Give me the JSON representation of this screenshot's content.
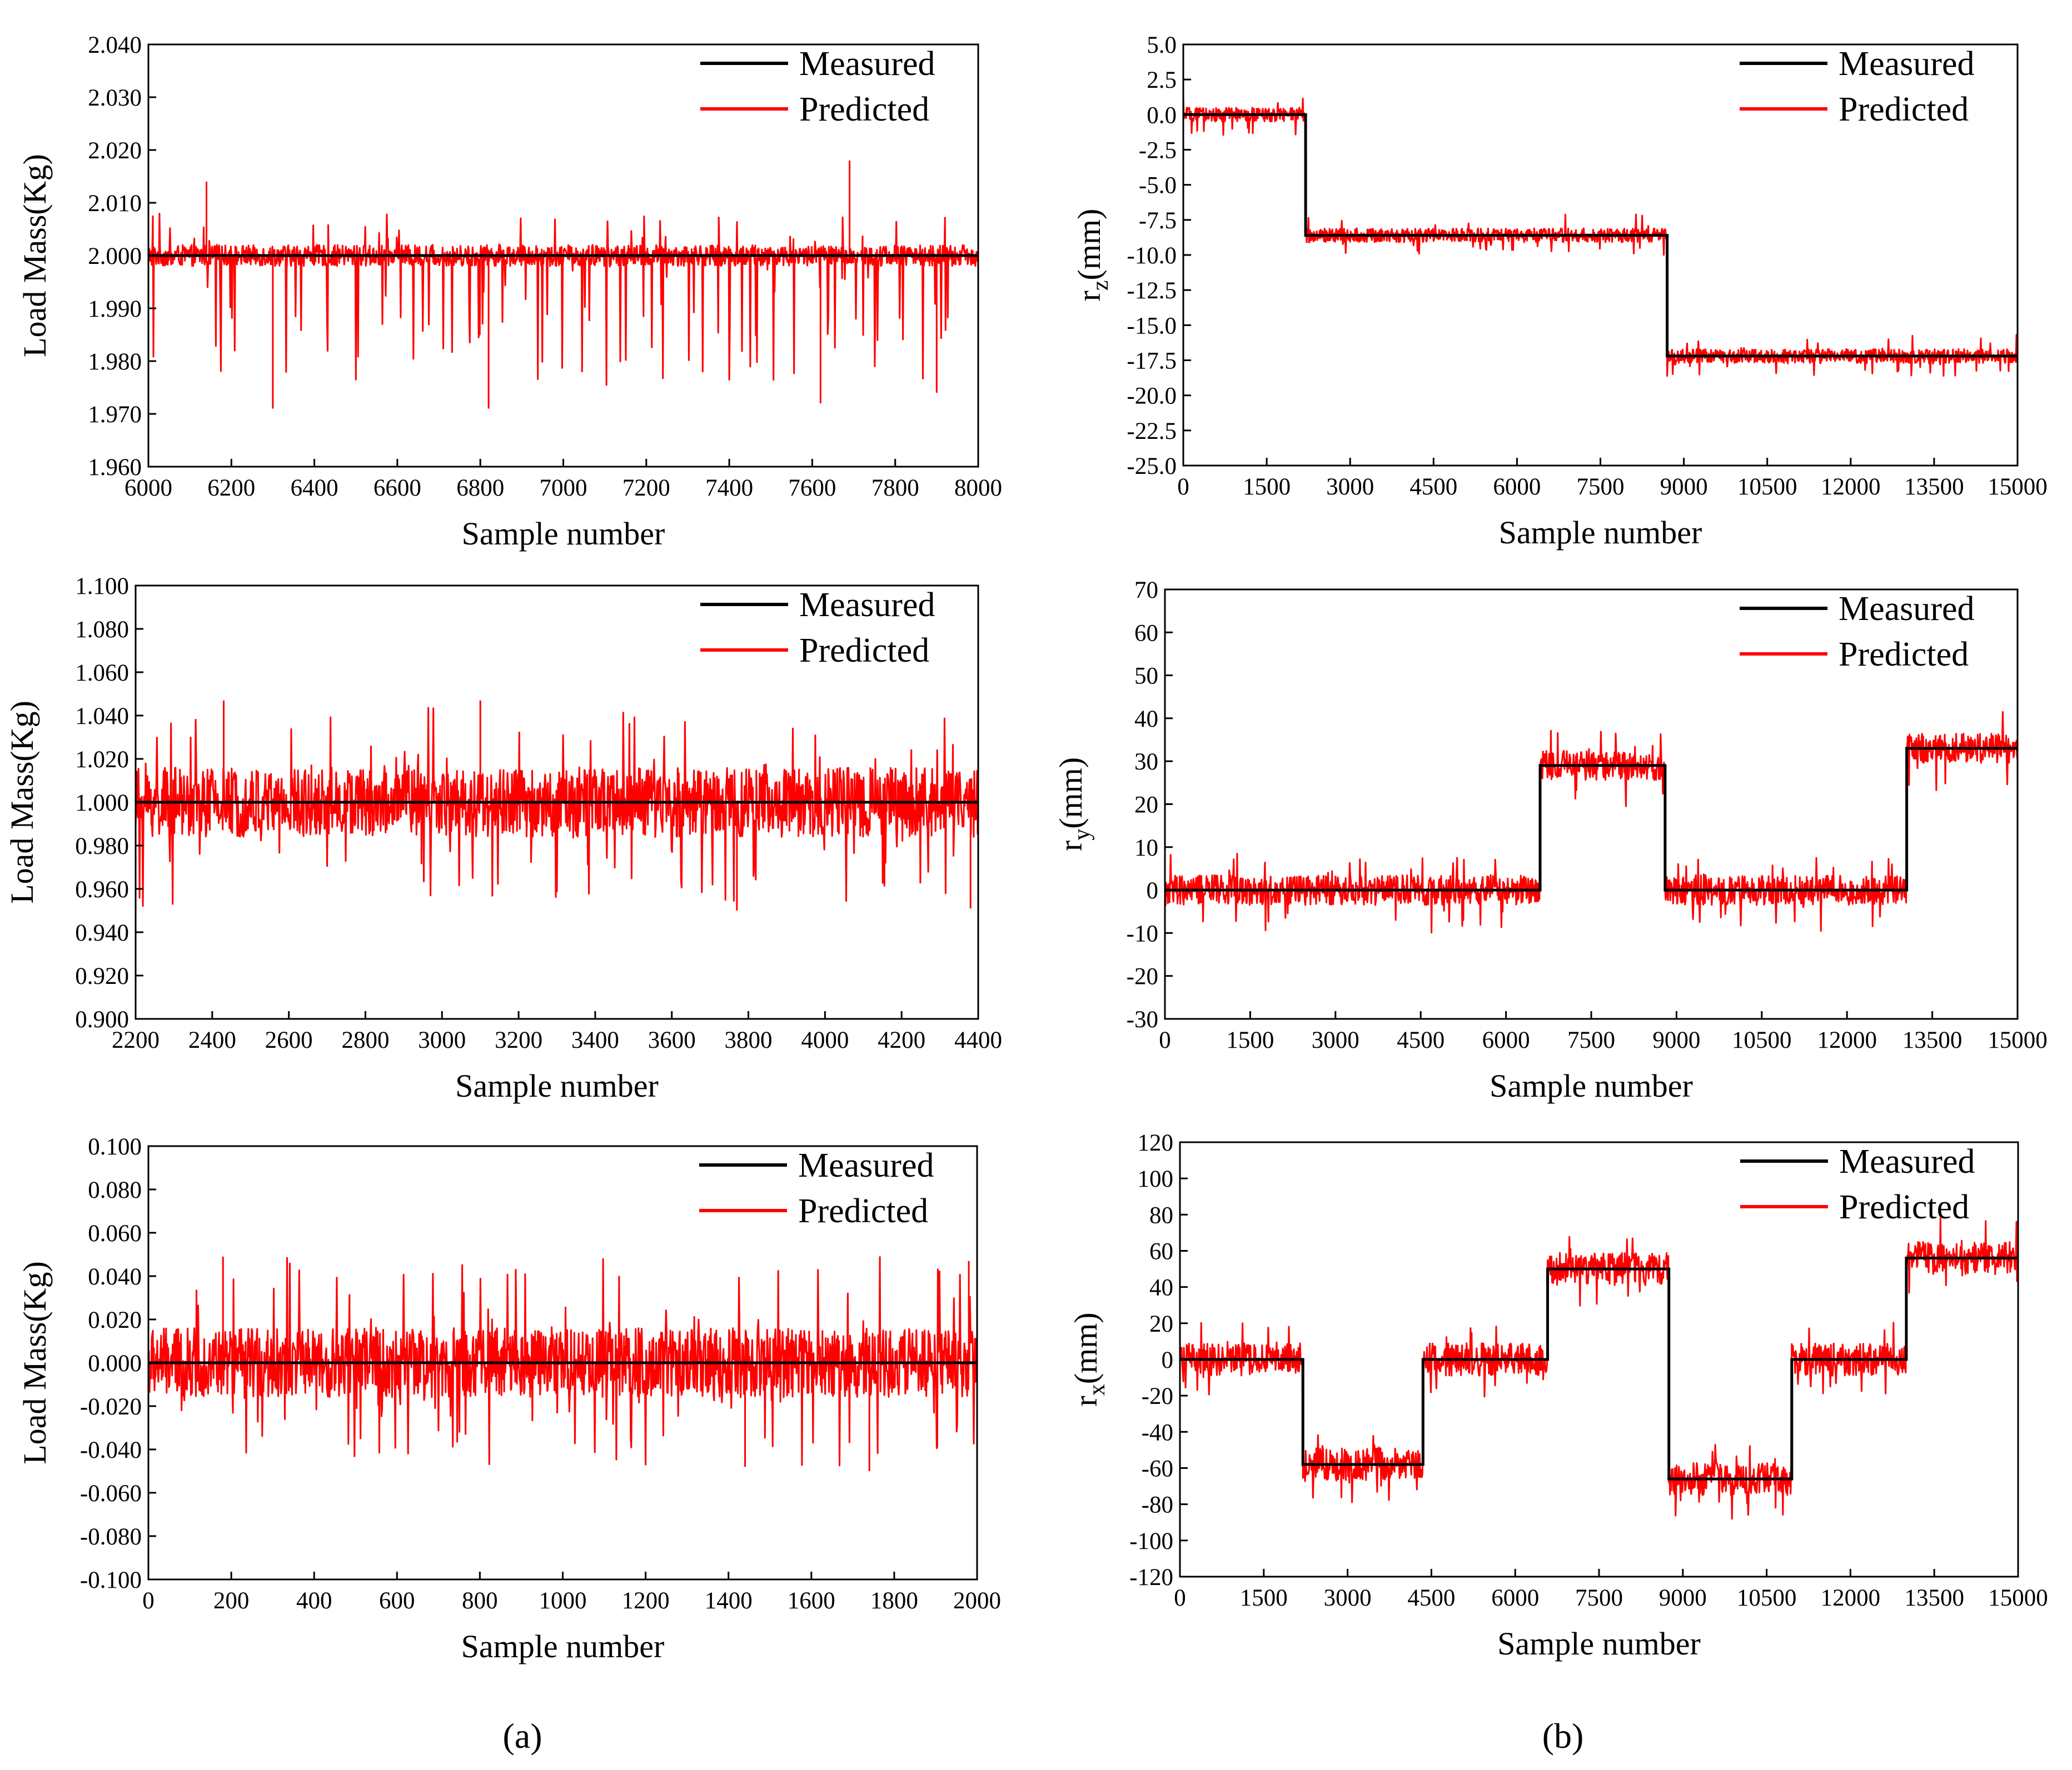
{
  "figure": {
    "panel_labels": [
      "(a)",
      "(b)"
    ],
    "measured_color": "#000000",
    "predicted_color": "#ff0000"
  },
  "chart_data": [
    {
      "type": "line",
      "id": "a1",
      "ylabel": "Load Mass(Kg)",
      "xlabel": "Sample number",
      "x_range": [
        6000,
        8000
      ],
      "ylim": [
        1.96,
        2.04
      ],
      "x_ticks": [
        "6000",
        "6200",
        "6400",
        "6600",
        "6800",
        "7000",
        "7200",
        "7400",
        "7600",
        "7800",
        "8000"
      ],
      "y_ticks": [
        "1.960",
        "1.970",
        "1.980",
        "1.990",
        "2.000",
        "2.010",
        "2.020",
        "2.030",
        "2.040"
      ],
      "legend": [
        "Measured",
        "Predicted"
      ],
      "series": [
        {
          "name": "Measured",
          "segments": [
            [
              6000,
              2.0
            ]
          ]
        },
        {
          "name": "Predicted",
          "base": 2.0,
          "noise": 0.002,
          "spike_prob": 0.1,
          "spike_down": 0.026,
          "spike_up": 0.008,
          "extremes": [
            [
              6140,
              2.014
            ],
            [
              6300,
              1.971
            ],
            [
              6820,
              1.971
            ],
            [
              7620,
              1.972
            ],
            [
              7690,
              2.018
            ],
            [
              7900,
              1.974
            ]
          ]
        }
      ]
    },
    {
      "type": "line",
      "id": "a2",
      "ylabel": "Load Mass(Kg)",
      "xlabel": "Sample number",
      "x_range": [
        2200,
        4400
      ],
      "ylim": [
        0.9,
        1.1
      ],
      "x_ticks": [
        "2200",
        "2400",
        "2600",
        "2800",
        "3000",
        "3200",
        "3400",
        "3600",
        "3800",
        "4000",
        "4200",
        "4400"
      ],
      "y_ticks": [
        "0.900",
        "0.920",
        "0.940",
        "0.960",
        "0.980",
        "1.000",
        "1.020",
        "1.040",
        "1.060",
        "1.080",
        "1.100"
      ],
      "legend": [
        "Measured",
        "Predicted"
      ],
      "series": [
        {
          "name": "Measured",
          "segments": [
            [
              2200,
              1.0
            ]
          ]
        },
        {
          "name": "Predicted",
          "base": 1.0,
          "noise": 0.016,
          "spike_prob": 0.08,
          "spike_down": 0.048,
          "spike_up": 0.046,
          "extremes": [
            [
              2430,
              1.047
            ],
            [
              3100,
              1.047
            ],
            [
              3770,
              0.95
            ],
            [
              4380,
              0.951
            ]
          ]
        }
      ]
    },
    {
      "type": "line",
      "id": "a3",
      "ylabel": "Load Mass(Kg)",
      "xlabel": "Sample number",
      "x_range": [
        0,
        2000
      ],
      "ylim": [
        -0.1,
        0.1
      ],
      "x_ticks": [
        "0",
        "200",
        "400",
        "600",
        "800",
        "1000",
        "1200",
        "1400",
        "1600",
        "1800",
        "2000"
      ],
      "y_ticks": [
        "-0.100",
        "-0.080",
        "-0.060",
        "-0.040",
        "-0.020",
        "0.000",
        "0.020",
        "0.040",
        "0.060",
        "0.080",
        "0.100"
      ],
      "legend": [
        "Measured",
        "Predicted"
      ],
      "series": [
        {
          "name": "Measured",
          "segments": [
            [
              0,
              0.0
            ]
          ]
        },
        {
          "name": "Predicted",
          "base": 0.0,
          "noise": 0.016,
          "spike_prob": 0.1,
          "spike_down": 0.048,
          "spike_up": 0.049,
          "extremes": [
            [
              180,
              0.049
            ],
            [
              1440,
              -0.048
            ],
            [
              1740,
              -0.05
            ],
            [
              1980,
              0.047
            ]
          ]
        }
      ]
    },
    {
      "type": "line",
      "id": "b1",
      "ylabel": "r",
      "ylabel_sub": "z",
      "ylabel_unit": "(mm)",
      "xlabel": "Sample number",
      "x_range": [
        0,
        15000
      ],
      "ylim": [
        -25,
        5
      ],
      "x_ticks": [
        "0",
        "1500",
        "3000",
        "4500",
        "6000",
        "7500",
        "9000",
        "10500",
        "12000",
        "13500",
        "15000"
      ],
      "y_ticks": [
        "-25.0",
        "-22.5",
        "-20.0",
        "-17.5",
        "-15.0",
        "-12.5",
        "-10.0",
        "-7.5",
        "-5.0",
        "-2.5",
        "0.0",
        "2.5",
        "5.0"
      ],
      "legend": [
        "Measured",
        "Predicted"
      ],
      "series": [
        {
          "name": "Measured",
          "segments": [
            [
              0,
              0.0
            ],
            [
              2200,
              -8.6
            ],
            [
              8700,
              -17.2
            ]
          ]
        },
        {
          "name": "Predicted",
          "noise": 0.5,
          "spike_prob": 0.06,
          "spike_down": 1.5,
          "spike_up": 1.6
        }
      ]
    },
    {
      "type": "line",
      "id": "b2",
      "ylabel": "r",
      "ylabel_sub": "y",
      "ylabel_unit": "(mm)",
      "xlabel": "Sample number",
      "x_range": [
        0,
        15000
      ],
      "ylim": [
        -30,
        70
      ],
      "x_ticks": [
        "0",
        "1500",
        "3000",
        "4500",
        "6000",
        "7500",
        "9000",
        "10500",
        "12000",
        "13500",
        "15000"
      ],
      "y_ticks": [
        "-30",
        "-20",
        "-10",
        "0",
        "10",
        "20",
        "30",
        "40",
        "50",
        "60",
        "70"
      ],
      "legend": [
        "Measured",
        "Predicted"
      ],
      "series": [
        {
          "name": "Measured",
          "segments": [
            [
              0,
              0
            ],
            [
              6600,
              29
            ],
            [
              8800,
              0
            ],
            [
              13050,
              33
            ]
          ]
        },
        {
          "name": "Predicted",
          "noise": 3.5,
          "spike_prob": 0.08,
          "spike_down": 10,
          "spike_up": 9
        }
      ]
    },
    {
      "type": "line",
      "id": "b3",
      "ylabel": "r",
      "ylabel_sub": "x",
      "ylabel_unit": "(mm)",
      "xlabel": "Sample number",
      "x_range": [
        0,
        15000
      ],
      "ylim": [
        -120,
        120
      ],
      "x_ticks": [
        "0",
        "1500",
        "3000",
        "4500",
        "6000",
        "7500",
        "9000",
        "10500",
        "12000",
        "13500",
        "15000"
      ],
      "y_ticks": [
        "-120",
        "-100",
        "-80",
        "-60",
        "-40",
        "-20",
        "0",
        "20",
        "40",
        "60",
        "80",
        "100",
        "120"
      ],
      "legend": [
        "Measured",
        "Predicted"
      ],
      "series": [
        {
          "name": "Measured",
          "segments": [
            [
              0,
              0
            ],
            [
              2200,
              -58
            ],
            [
              4350,
              0
            ],
            [
              6580,
              50
            ],
            [
              8750,
              -66
            ],
            [
              10950,
              0
            ],
            [
              13000,
              56
            ]
          ]
        },
        {
          "name": "Predicted",
          "noise": 9,
          "spike_prob": 0.08,
          "spike_down": 22,
          "spike_up": 22
        }
      ]
    }
  ]
}
